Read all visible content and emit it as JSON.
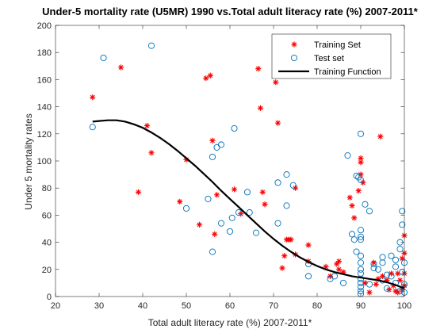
{
  "chart_data": {
    "type": "scatter",
    "title": "Under-5 mortality rate (U5MR) 1990 vs.Total adult literacy rate (%) 2007-2011*",
    "xlabel": "Total adult literacy rate (%) 2007-2011*",
    "ylabel": "Under 5 mortality rates",
    "xlim": [
      20,
      100
    ],
    "ylim": [
      0,
      200
    ],
    "xticks": [
      "20",
      "30",
      "40",
      "50",
      "60",
      "70",
      "80",
      "90",
      "100"
    ],
    "yticks": [
      "0",
      "20",
      "40",
      "60",
      "80",
      "100",
      "120",
      "140",
      "160",
      "180",
      "200"
    ],
    "grid": false,
    "legend_position": "top-right",
    "series": [
      {
        "name": "Training Set",
        "marker": "asterisk",
        "color": "#ff0000",
        "points": [
          [
            28.5,
            147
          ],
          [
            35,
            169
          ],
          [
            39,
            77
          ],
          [
            41,
            126
          ],
          [
            42,
            106
          ],
          [
            48.5,
            70
          ],
          [
            50,
            101
          ],
          [
            53,
            53
          ],
          [
            54.5,
            161
          ],
          [
            55.5,
            163
          ],
          [
            56,
            115
          ],
          [
            56.5,
            46
          ],
          [
            57,
            75
          ],
          [
            61,
            79
          ],
          [
            62.5,
            61
          ],
          [
            66.5,
            168
          ],
          [
            67,
            139
          ],
          [
            67.5,
            77
          ],
          [
            68,
            68
          ],
          [
            70.5,
            158
          ],
          [
            71,
            128
          ],
          [
            72,
            21
          ],
          [
            72.5,
            30
          ],
          [
            73,
            42
          ],
          [
            73.5,
            42
          ],
          [
            74,
            42
          ],
          [
            75,
            80
          ],
          [
            75,
            31
          ],
          [
            78,
            26
          ],
          [
            78,
            38
          ],
          [
            82,
            22
          ],
          [
            83,
            15
          ],
          [
            84.5,
            24
          ],
          [
            85,
            20
          ],
          [
            85,
            26
          ],
          [
            86,
            18
          ],
          [
            87.5,
            73
          ],
          [
            88,
            67
          ],
          [
            88.5,
            58
          ],
          [
            89.5,
            78
          ],
          [
            90,
            102
          ],
          [
            90,
            99
          ],
          [
            90,
            90
          ],
          [
            90.5,
            84
          ],
          [
            91,
            10
          ],
          [
            92,
            3
          ],
          [
            93,
            25
          ],
          [
            93.5,
            9
          ],
          [
            94,
            13
          ],
          [
            94.5,
            118
          ],
          [
            95,
            15
          ],
          [
            96,
            12
          ],
          [
            96.5,
            5
          ],
          [
            97,
            17
          ],
          [
            97.5,
            8
          ],
          [
            98,
            4
          ],
          [
            98.5,
            17
          ],
          [
            98.5,
            3
          ],
          [
            99,
            12
          ],
          [
            99.5,
            28
          ],
          [
            99.5,
            5
          ],
          [
            100,
            45
          ],
          [
            100,
            32
          ],
          [
            100,
            17
          ],
          [
            100,
            8
          ]
        ]
      },
      {
        "name": "Test set",
        "marker": "circle",
        "color": "#0072bd",
        "points": [
          [
            28.5,
            125
          ],
          [
            31,
            176
          ],
          [
            42,
            185
          ],
          [
            50,
            65
          ],
          [
            55,
            72
          ],
          [
            56,
            103
          ],
          [
            56,
            33
          ],
          [
            57,
            110
          ],
          [
            58,
            112
          ],
          [
            58,
            54
          ],
          [
            60,
            48
          ],
          [
            60.5,
            58
          ],
          [
            61,
            124
          ],
          [
            62,
            62
          ],
          [
            64,
            77
          ],
          [
            64.5,
            62
          ],
          [
            66,
            47
          ],
          [
            71,
            84
          ],
          [
            71,
            54
          ],
          [
            73,
            90
          ],
          [
            73,
            67
          ],
          [
            74.5,
            82
          ],
          [
            78,
            15
          ],
          [
            78,
            24
          ],
          [
            83,
            13
          ],
          [
            84,
            15
          ],
          [
            86,
            10
          ],
          [
            87,
            104
          ],
          [
            88,
            46
          ],
          [
            88.5,
            42
          ],
          [
            89,
            89
          ],
          [
            89,
            33
          ],
          [
            89.5,
            88
          ],
          [
            90,
            120
          ],
          [
            90,
            86
          ],
          [
            90,
            49
          ],
          [
            90,
            44
          ],
          [
            90,
            42
          ],
          [
            90,
            30
          ],
          [
            90,
            25
          ],
          [
            90,
            20
          ],
          [
            90,
            17
          ],
          [
            90,
            13
          ],
          [
            90,
            10
          ],
          [
            90,
            7
          ],
          [
            90,
            4
          ],
          [
            90,
            2
          ],
          [
            91,
            68
          ],
          [
            92,
            63
          ],
          [
            92,
            9
          ],
          [
            93,
            24
          ],
          [
            93,
            21
          ],
          [
            94,
            20
          ],
          [
            95,
            29
          ],
          [
            95,
            25
          ],
          [
            95,
            12
          ],
          [
            96,
            6
          ],
          [
            96,
            16
          ],
          [
            97,
            30
          ],
          [
            97,
            15
          ],
          [
            98,
            27
          ],
          [
            98,
            22
          ],
          [
            98,
            10
          ],
          [
            99,
            40
          ],
          [
            99,
            35
          ],
          [
            99,
            4
          ],
          [
            99.5,
            63
          ],
          [
            99.5,
            53
          ],
          [
            99.5,
            18
          ],
          [
            100,
            25
          ],
          [
            100,
            9
          ],
          [
            100,
            3
          ]
        ]
      },
      {
        "name": "Training Function",
        "marker": "line",
        "color": "#000000",
        "points": [
          [
            28.5,
            129
          ],
          [
            30,
            129.5
          ],
          [
            32,
            130
          ],
          [
            34,
            130
          ],
          [
            36,
            129
          ],
          [
            38,
            127
          ],
          [
            40,
            124.5
          ],
          [
            42,
            121
          ],
          [
            44,
            117
          ],
          [
            46,
            112.5
          ],
          [
            48,
            107.5
          ],
          [
            50,
            102
          ],
          [
            52,
            96.5
          ],
          [
            54,
            90.5
          ],
          [
            56,
            84.5
          ],
          [
            58,
            78
          ],
          [
            60,
            72
          ],
          [
            62,
            66
          ],
          [
            64,
            60
          ],
          [
            66,
            54
          ],
          [
            68,
            48
          ],
          [
            70,
            42.5
          ],
          [
            72,
            37.5
          ],
          [
            74,
            33
          ],
          [
            76,
            29
          ],
          [
            78,
            25.5
          ],
          [
            80,
            22.5
          ],
          [
            82,
            20
          ],
          [
            84,
            18
          ],
          [
            86,
            16.5
          ],
          [
            88,
            15
          ],
          [
            90,
            14
          ],
          [
            92,
            13
          ],
          [
            94,
            12
          ],
          [
            96,
            10.5
          ],
          [
            98,
            8.5
          ],
          [
            100,
            6
          ]
        ]
      }
    ]
  }
}
